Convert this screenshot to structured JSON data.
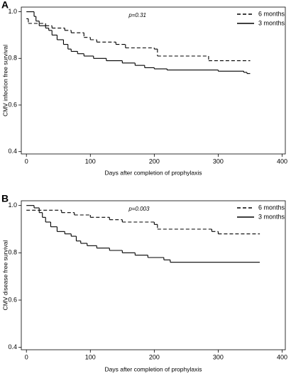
{
  "chart_data": [
    {
      "type": "line",
      "step": "post",
      "panel_label": "A",
      "annotation": "p=0.31",
      "xlabel": "Days after completion of prophylaxis",
      "ylabel": "CMV infection free survival",
      "xlim": [
        -8,
        405
      ],
      "ylim": [
        0.39,
        1.02
      ],
      "xticks": [
        0,
        100,
        200,
        300,
        400
      ],
      "yticks": [
        {
          "value": 1,
          "label": "1.0"
        },
        0.8,
        0.6,
        0.4
      ],
      "legend": "upper right",
      "series": [
        {
          "name": "6 months",
          "color": "#000000",
          "line_style": "dashed",
          "x": [
            0,
            3,
            30,
            40,
            60,
            70,
            90,
            100,
            110,
            140,
            155,
            200,
            205,
            285,
            350
          ],
          "values": [
            0.97,
            0.95,
            0.94,
            0.93,
            0.92,
            0.91,
            0.89,
            0.88,
            0.87,
            0.86,
            0.845,
            0.84,
            0.81,
            0.79,
            0.79
          ]
        },
        {
          "name": "3 months",
          "color": "#000000",
          "line_style": "solid",
          "x": [
            0,
            12,
            15,
            20,
            30,
            35,
            40,
            48,
            58,
            65,
            70,
            80,
            90,
            105,
            125,
            150,
            170,
            185,
            200,
            220,
            300,
            340,
            345,
            350
          ],
          "values": [
            1,
            0.98,
            0.96,
            0.94,
            0.93,
            0.92,
            0.9,
            0.88,
            0.86,
            0.84,
            0.83,
            0.82,
            0.81,
            0.8,
            0.79,
            0.78,
            0.77,
            0.76,
            0.755,
            0.75,
            0.745,
            0.74,
            0.735,
            0.735
          ]
        }
      ]
    },
    {
      "type": "line",
      "step": "post",
      "panel_label": "B",
      "annotation": "p=0.003",
      "xlabel": "Days after completion of prophylaxis",
      "ylabel": "CMV disease free survival",
      "xlim": [
        -8,
        405
      ],
      "ylim": [
        0.39,
        1.02
      ],
      "xticks": [
        0,
        100,
        200,
        300,
        400
      ],
      "yticks": [
        {
          "value": 1,
          "label": "1.0"
        },
        0.8,
        0.6,
        0.4
      ],
      "legend": "upper right",
      "series": [
        {
          "name": "6 months",
          "color": "#000000",
          "line_style": "dashed",
          "x": [
            0,
            55,
            75,
            100,
            130,
            150,
            200,
            205,
            290,
            300,
            365
          ],
          "values": [
            0.98,
            0.97,
            0.96,
            0.95,
            0.94,
            0.93,
            0.92,
            0.9,
            0.89,
            0.88,
            0.88
          ]
        },
        {
          "name": "3 months",
          "color": "#000000",
          "line_style": "solid",
          "x": [
            0,
            12,
            20,
            25,
            30,
            38,
            48,
            60,
            70,
            78,
            85,
            95,
            110,
            130,
            150,
            170,
            190,
            215,
            225,
            365
          ],
          "values": [
            1,
            0.99,
            0.97,
            0.95,
            0.93,
            0.91,
            0.89,
            0.88,
            0.87,
            0.85,
            0.84,
            0.83,
            0.82,
            0.81,
            0.8,
            0.79,
            0.78,
            0.77,
            0.76,
            0.76
          ]
        }
      ]
    }
  ]
}
